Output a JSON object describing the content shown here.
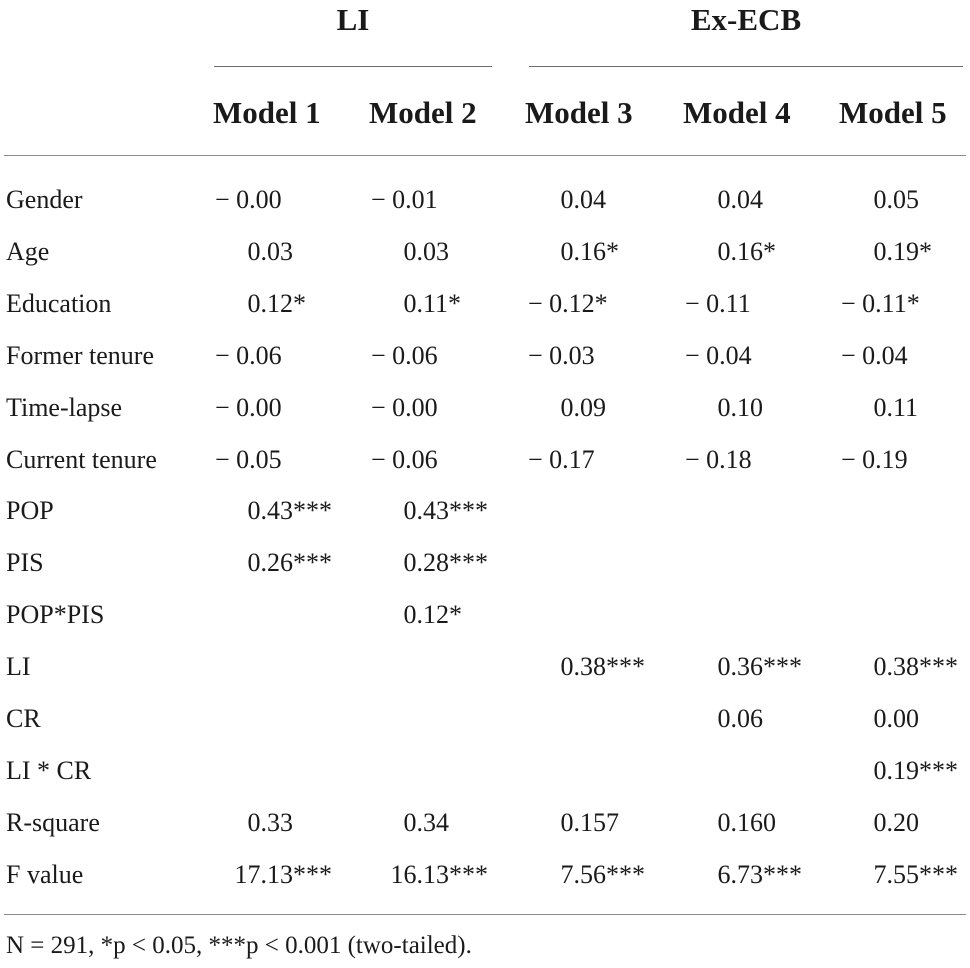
{
  "groups": {
    "li": "LI",
    "ex_ecb": "Ex-ECB"
  },
  "models": [
    "Model 1",
    "Model 2",
    "Model 3",
    "Model 4",
    "Model 5"
  ],
  "rows": [
    {
      "label": "Gender",
      "values": [
        "− 0.00",
        "− 0.01",
        "   0.04",
        "   0.04",
        "   0.05"
      ]
    },
    {
      "label": "Age",
      "values": [
        "   0.03",
        "   0.03",
        "   0.16*",
        "   0.16*",
        "   0.19*"
      ]
    },
    {
      "label": "Education",
      "values": [
        "   0.12*",
        "   0.11*",
        "− 0.12*",
        "− 0.11",
        "− 0.11*"
      ]
    },
    {
      "label": "Former tenure",
      "values": [
        "− 0.06",
        "− 0.06",
        "− 0.03",
        "− 0.04",
        "− 0.04"
      ]
    },
    {
      "label": "Time-lapse",
      "values": [
        "− 0.00",
        "− 0.00",
        "   0.09",
        "   0.10",
        "   0.11"
      ]
    },
    {
      "label": "Current tenure",
      "values": [
        "− 0.05",
        "− 0.06",
        "− 0.17",
        "− 0.18",
        "− 0.19"
      ]
    },
    {
      "label": "POP",
      "values": [
        "   0.43***",
        "   0.43***",
        "",
        "",
        ""
      ]
    },
    {
      "label": "PIS",
      "values": [
        "   0.26***",
        "   0.28***",
        "",
        "",
        ""
      ]
    },
    {
      "label": "POP*PIS",
      "values": [
        "",
        "   0.12*",
        "",
        "",
        ""
      ]
    },
    {
      "label": "LI",
      "values": [
        "",
        "",
        "   0.38***",
        "   0.36***",
        "   0.38***"
      ]
    },
    {
      "label": "CR",
      "values": [
        "",
        "",
        "",
        "   0.06",
        "   0.00"
      ]
    },
    {
      "label": "LI * CR",
      "values": [
        "",
        "",
        "",
        "",
        "   0.19***"
      ]
    },
    {
      "label": "R-square",
      "values": [
        "   0.33",
        "   0.34",
        "   0.157",
        "   0.160",
        "   0.20"
      ]
    },
    {
      "label": "F value",
      "values": [
        "  17.13***",
        "  16.13***",
        "   7.56***",
        "   6.73***",
        "   7.55***"
      ]
    }
  ],
  "footnote": "N = 291, *p < 0.05, ***p < 0.001 (two-tailed)."
}
